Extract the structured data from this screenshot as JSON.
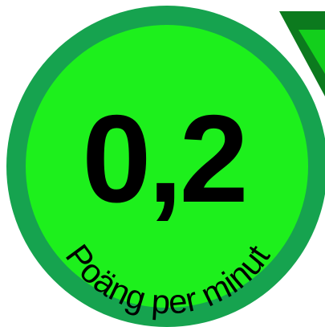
{
  "badge": {
    "value": "0,2",
    "label": "Poäng per minut"
  },
  "colors": {
    "outer_ring": "#16a34f",
    "inner_fill": "#1df01c",
    "text": "#000000",
    "arrow_dark": "#0c7a1e",
    "arrow_bright": "#13cf1c",
    "background": "#ffffff"
  },
  "icons": {
    "arrow": "chevron-down-icon"
  }
}
